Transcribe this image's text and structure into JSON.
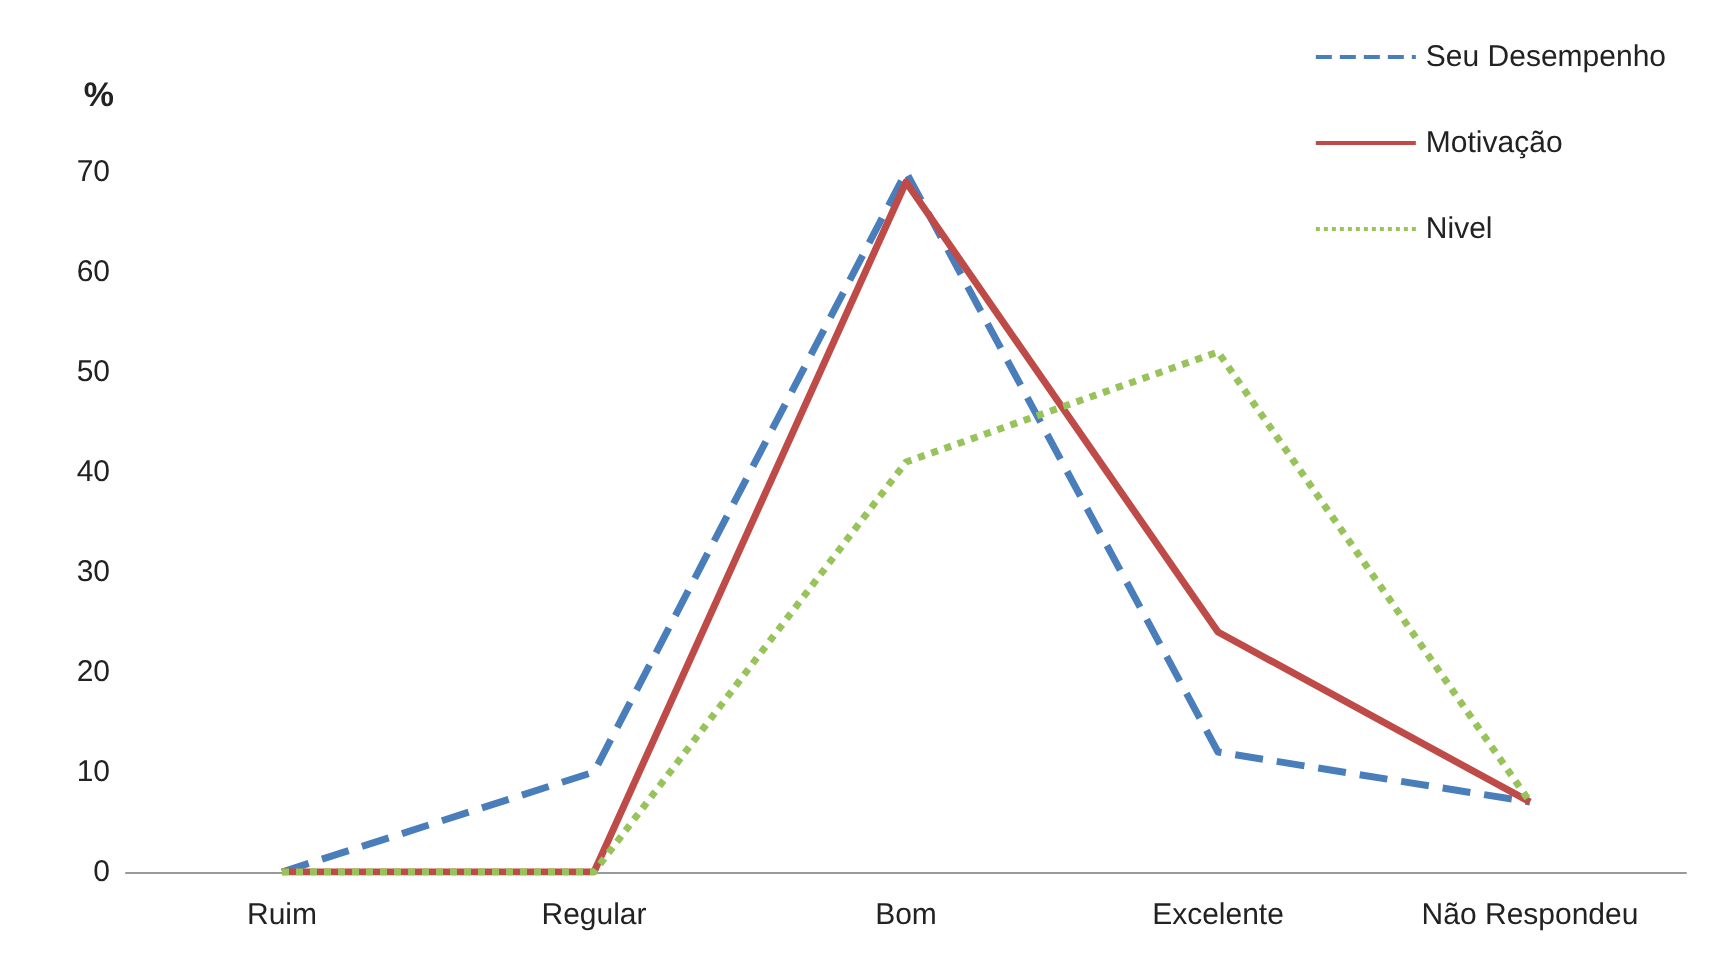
{
  "chart_data": {
    "type": "line",
    "ylabel": "%",
    "categories": [
      "Ruim",
      "Regular",
      "Bom",
      "Excelente",
      "Não Respondeu"
    ],
    "series": [
      {
        "name": "Seu Desempenho",
        "color": "#4a7ebb",
        "line_style": "dashed",
        "values": [
          0,
          10,
          70,
          12,
          7
        ]
      },
      {
        "name": "Motivação",
        "color": "#be4b48",
        "line_style": "solid",
        "values": [
          0,
          0,
          69,
          24,
          7
        ]
      },
      {
        "name": "Nivel",
        "color": "#98c35a",
        "line_style": "dotted",
        "values": [
          0,
          0,
          41,
          52,
          7
        ]
      }
    ],
    "ylim": [
      0,
      70
    ],
    "yticks": [
      0,
      10,
      20,
      30,
      40,
      50,
      60,
      70
    ],
    "grid": false,
    "legend": "top right",
    "marker": "none"
  }
}
